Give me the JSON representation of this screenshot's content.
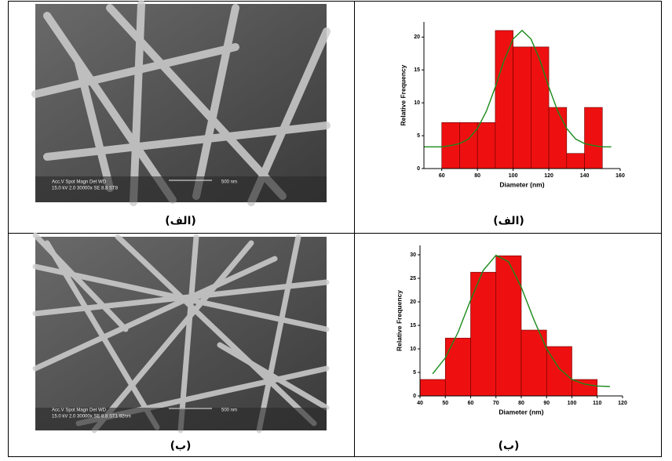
{
  "table": {
    "rows": [
      [
        "(الف)",
        "(الف)"
      ],
      [
        "(ب)",
        "(ب)"
      ]
    ]
  },
  "sem_images": [
    {
      "info": [
        "Acc.V  Spot Magn   Det  WD",
        "500 nm",
        "15.0 kV 2.0  30000x  SE  8.8  ST8"
      ]
    },
    {
      "info": [
        "Acc.V  Spot Magn   Det  WD",
        "500 nm",
        "15.0 kV 2.0  30000x  SE  8.8  ST1 92nm"
      ]
    }
  ],
  "chart_data": [
    {
      "type": "histogram",
      "xlabel": "Diameter (nm)",
      "ylabel": "Relative Frequency",
      "bins": [
        60,
        70,
        80,
        90,
        100,
        110,
        120,
        130,
        140,
        150
      ],
      "values": [
        7,
        7,
        7,
        21,
        18.5,
        18.5,
        9.3,
        2.3,
        9.3
      ],
      "color": "#ee1010",
      "xlim": [
        50,
        160
      ],
      "xticks": [
        60,
        80,
        100,
        120,
        140,
        160
      ],
      "ylim": [
        0,
        22.3
      ],
      "yticks": [
        0,
        5,
        10,
        15,
        20
      ],
      "fit": {
        "color": "#1a8a1a",
        "x": [
          50,
          55,
          60,
          65,
          70,
          75,
          80,
          85,
          90,
          95,
          100,
          105,
          110,
          115,
          120,
          125,
          130,
          135,
          140,
          145,
          150,
          155
        ],
        "values": [
          3.3,
          3.3,
          3.3,
          3.5,
          3.8,
          4.5,
          6.1,
          8.7,
          12.4,
          16.5,
          19.7,
          21.0,
          19.7,
          16.5,
          12.4,
          8.7,
          6.1,
          4.5,
          3.8,
          3.5,
          3.3,
          3.3
        ]
      }
    },
    {
      "type": "histogram",
      "xlabel": "Diameter (nm)",
      "ylabel": "Relative Frequency",
      "bins": [
        40,
        50,
        60,
        70,
        80,
        90,
        100,
        110
      ],
      "values": [
        3.5,
        12.3,
        26.3,
        29.8,
        14,
        10.5,
        3.5
      ],
      "color": "#ee1010",
      "xlim": [
        40,
        120
      ],
      "xticks": [
        40,
        50,
        60,
        70,
        80,
        90,
        100,
        110,
        120
      ],
      "ylim": [
        0,
        32
      ],
      "yticks": [
        0,
        5,
        10,
        15,
        20,
        25,
        30
      ],
      "fit": {
        "color": "#1a8a1a",
        "x": [
          45,
          50,
          55,
          60,
          65,
          70,
          75,
          80,
          85,
          90,
          95,
          100,
          105,
          110,
          115
        ],
        "values": [
          4.7,
          8.1,
          13.5,
          20.4,
          26.7,
          29.9,
          28.5,
          23.1,
          16.2,
          10.0,
          5.8,
          3.5,
          2.5,
          2.1,
          2.0
        ]
      }
    }
  ]
}
